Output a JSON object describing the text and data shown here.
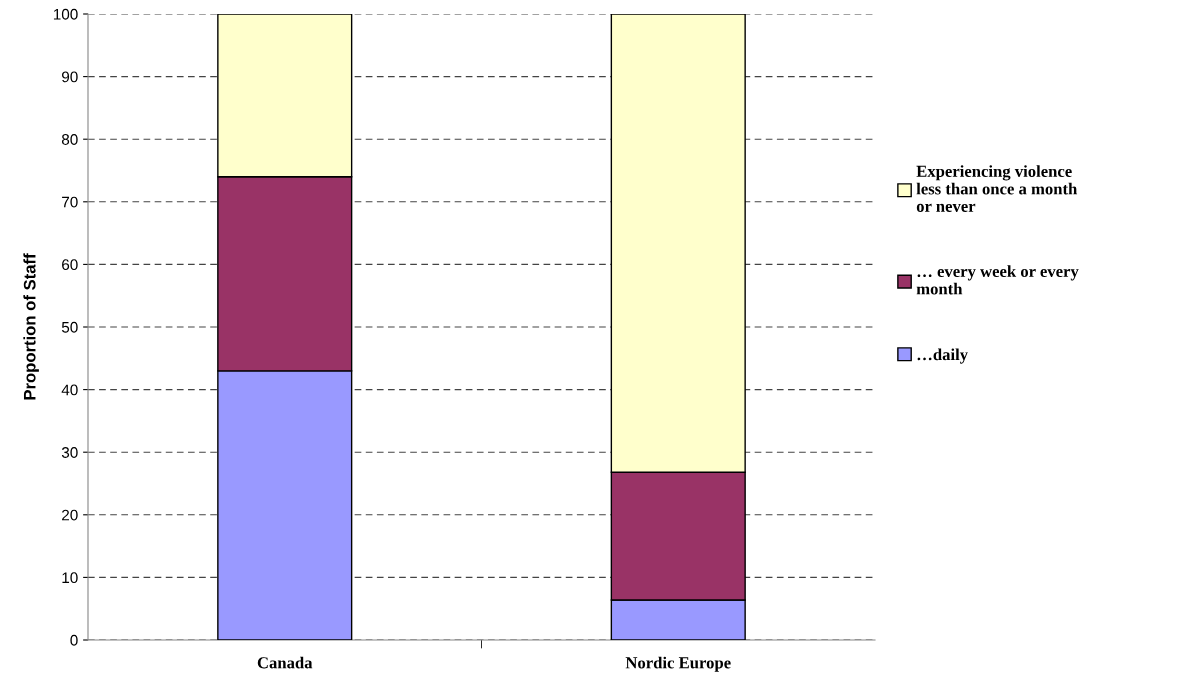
{
  "chart_data": {
    "type": "bar",
    "stacked": true,
    "ylabel": "Proportion of Staff",
    "categories": [
      "Canada",
      "Nordic Europe"
    ],
    "series": [
      {
        "name": "…daily",
        "color": "#9999ff",
        "values": [
          43,
          6.4
        ]
      },
      {
        "name": "… every week or every\nmonth",
        "color": "#993366",
        "values": [
          31,
          20.4
        ]
      },
      {
        "name": "Experiencing violence\nless than once a month\nor never",
        "color": "#ffffcc",
        "values": [
          26,
          73.2
        ]
      }
    ],
    "ylim": [
      0,
      100
    ],
    "yticks": [
      0,
      10,
      20,
      30,
      40,
      50,
      60,
      70,
      80,
      90,
      100
    ],
    "grid": "y",
    "legend": "right"
  }
}
